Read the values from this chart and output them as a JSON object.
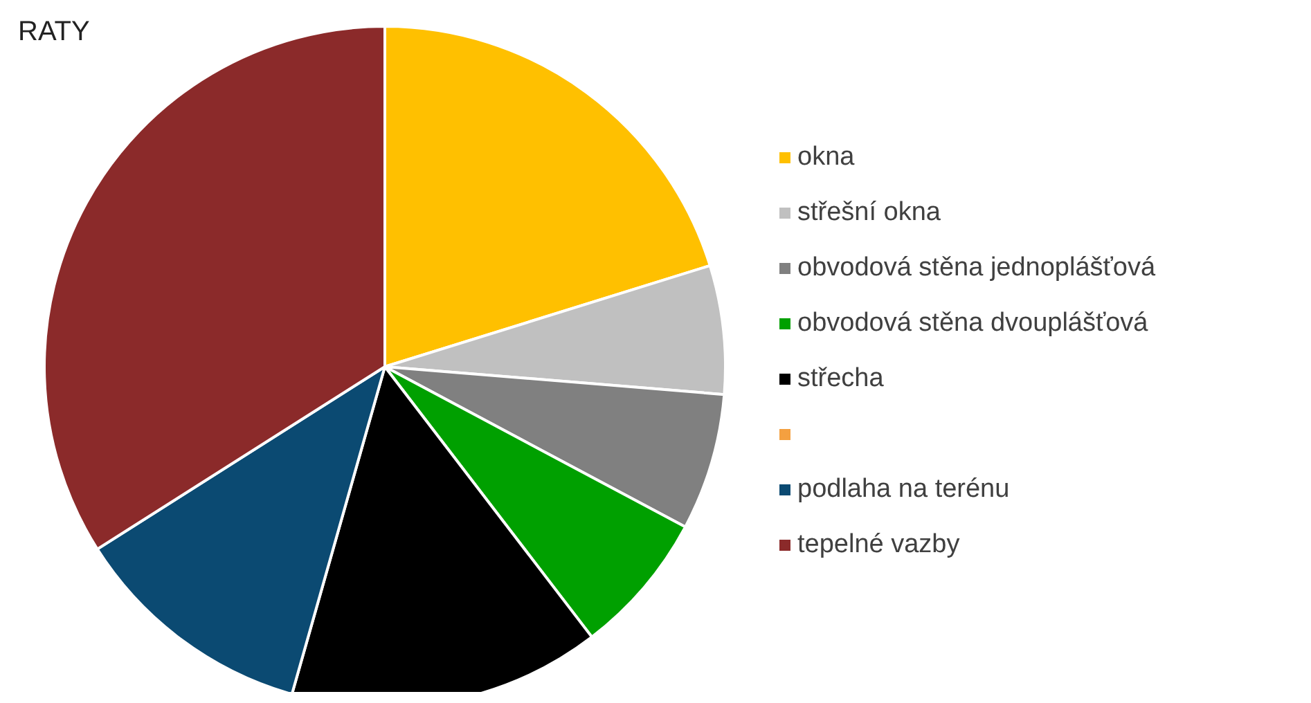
{
  "chart_data": {
    "type": "pie",
    "title": "RATY",
    "categories": [
      "okna",
      "střešní okna",
      "obvodová stěna jednoplášťová",
      "obvodová stěna dvouplášťová",
      "střecha",
      null,
      "podlaha na terénu",
      "tepelné vazby"
    ],
    "values": [
      20.2,
      6.1,
      6.5,
      6.8,
      14.8,
      0,
      11.6,
      34.0
    ],
    "colors": [
      "#ffc000",
      "#c0c0c0",
      "#808080",
      "#00a000",
      "#000000",
      "#f4a040",
      "#0b4a72",
      "#8b2a2a"
    ],
    "legend": "right"
  }
}
